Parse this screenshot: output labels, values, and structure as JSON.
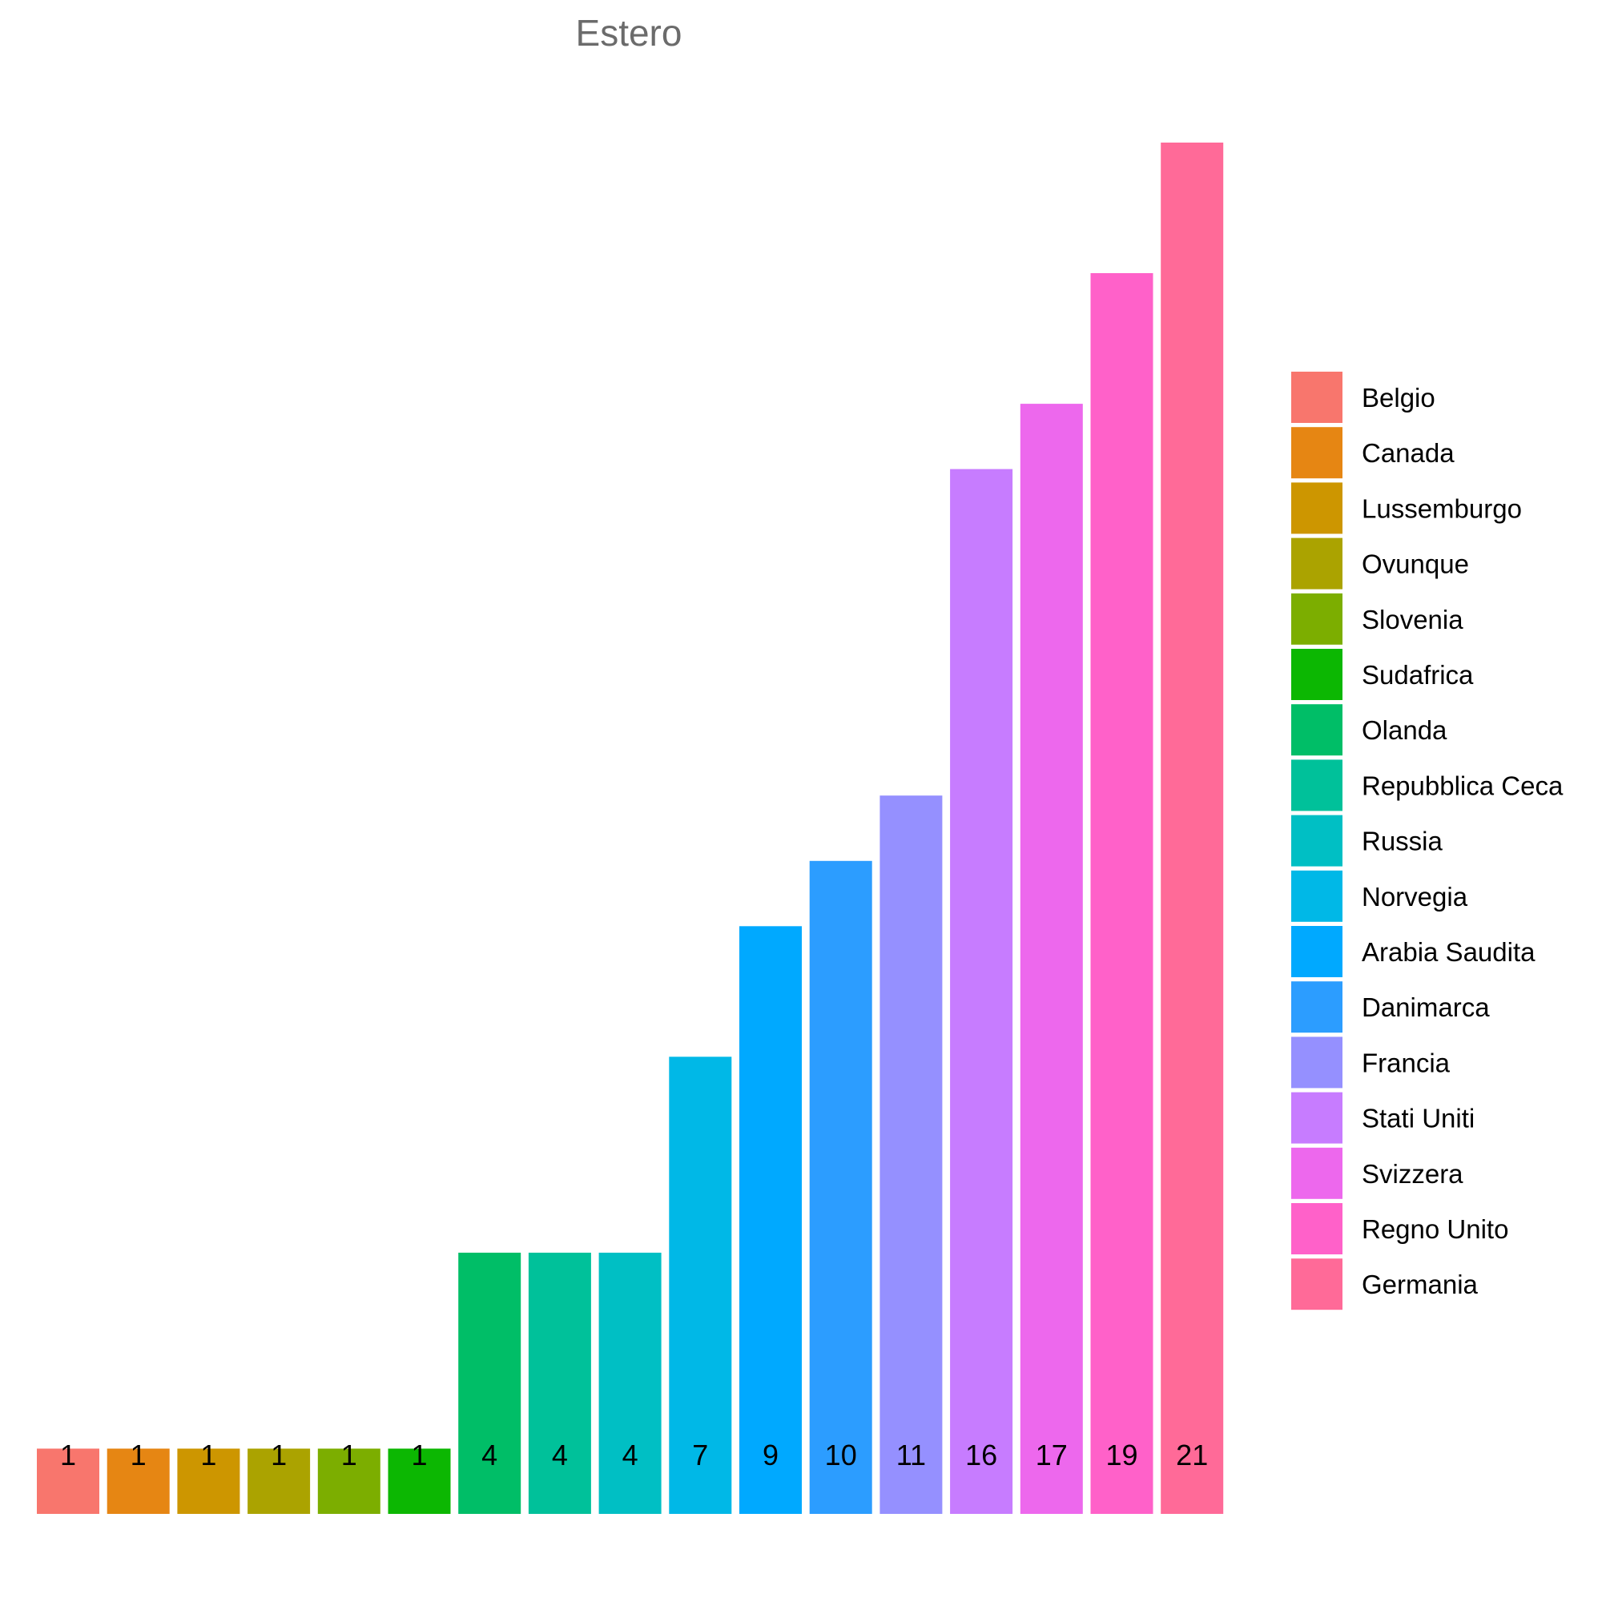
{
  "chart_data": {
    "type": "bar",
    "title": "Estero",
    "xlabel": "",
    "ylabel": "",
    "ylim": [
      0,
      21
    ],
    "grid": false,
    "legend_position": "right",
    "categories": [
      "Belgio",
      "Canada",
      "Lussemburgo",
      "Ovunque",
      "Slovenia",
      "Sudafrica",
      "Olanda",
      "Repubblica Ceca",
      "Russia",
      "Norvegia",
      "Arabia Saudita",
      "Danimarca",
      "Francia",
      "Stati Uniti",
      "Svizzera",
      "Regno Unito",
      "Germania"
    ],
    "values": [
      1,
      1,
      1,
      1,
      1,
      1,
      4,
      4,
      4,
      7,
      9,
      10,
      11,
      16,
      17,
      19,
      21
    ],
    "colors": [
      "#F8766D",
      "#E68613",
      "#CD9600",
      "#ABA300",
      "#7CAE00",
      "#0CB702",
      "#00BE67",
      "#00C19A",
      "#00BFC4",
      "#00B8E7",
      "#00A9FF",
      "#2C9DFF",
      "#9590FF",
      "#C77CFF",
      "#ED68ED",
      "#FF61C9",
      "#FF6A98"
    ]
  }
}
